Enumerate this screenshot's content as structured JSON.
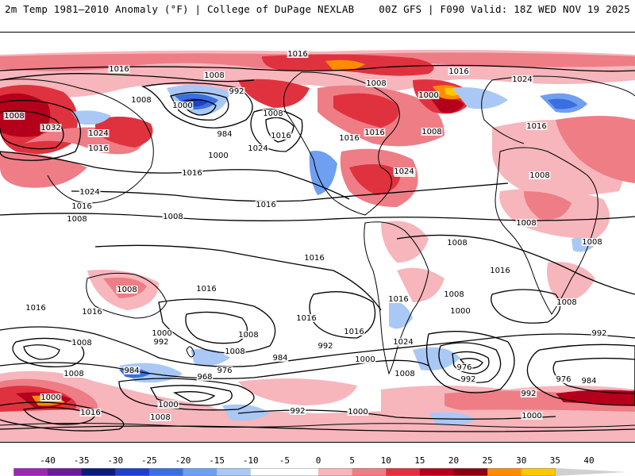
{
  "header": {
    "left_title": "2m Temp 1981–2010 Anomaly (°F) | College of DuPage NEXLAB",
    "right_title": "00Z GFS | F090 Valid: 18Z WED NOV 19 2025"
  },
  "colorbar": {
    "ticks": [
      "-40",
      "-35",
      "-30",
      "-25",
      "-20",
      "-15",
      "-10",
      "-5",
      "0",
      "5",
      "10",
      "15",
      "20",
      "25",
      "30",
      "35",
      "40"
    ],
    "colors": [
      "#e040fb",
      "#9c27b0",
      "#6a1b9a",
      "#0d1b7a",
      "#1e40c8",
      "#3a6fe0",
      "#6f9ff0",
      "#a9c8f5",
      "#ffffff",
      "#ffffff",
      "#f6b6bc",
      "#ee7d86",
      "#e0323e",
      "#b5001c",
      "#8a0010",
      "#ff8c00",
      "#ffc800",
      "#d0d0d0"
    ]
  },
  "isobars": [
    {
      "text": "1016"
    },
    {
      "text": "1016"
    },
    {
      "text": "1008"
    },
    {
      "text": "1008"
    },
    {
      "text": "992"
    },
    {
      "text": "1008"
    },
    {
      "text": "1032"
    },
    {
      "text": "1024"
    },
    {
      "text": "1016"
    },
    {
      "text": "1000"
    },
    {
      "text": "984"
    },
    {
      "text": "1008"
    },
    {
      "text": "1016"
    },
    {
      "text": "1024"
    },
    {
      "text": "1000"
    },
    {
      "text": "1016"
    },
    {
      "text": "1024"
    },
    {
      "text": "1016"
    },
    {
      "text": "1016"
    },
    {
      "text": "1016"
    },
    {
      "text": "1008"
    },
    {
      "text": "1016"
    },
    {
      "text": "1024"
    },
    {
      "text": "1008"
    },
    {
      "text": "1008"
    },
    {
      "text": "1016"
    },
    {
      "text": "1024"
    },
    {
      "text": "1000"
    },
    {
      "text": "1008"
    },
    {
      "text": "1016"
    },
    {
      "text": "1008"
    },
    {
      "text": "1008"
    },
    {
      "text": "1008"
    },
    {
      "text": "1008"
    },
    {
      "text": "1016"
    },
    {
      "text": "1016"
    },
    {
      "text": "1016"
    },
    {
      "text": "1016"
    },
    {
      "text": "1008"
    },
    {
      "text": "1016"
    },
    {
      "text": "1008"
    },
    {
      "text": "1016"
    },
    {
      "text": "1008"
    },
    {
      "text": "1008"
    },
    {
      "text": "1016"
    },
    {
      "text": "1008"
    },
    {
      "text": "1016"
    },
    {
      "text": "1024"
    },
    {
      "text": "1024"
    },
    {
      "text": "1000"
    },
    {
      "text": "992"
    },
    {
      "text": "1008"
    },
    {
      "text": "984"
    },
    {
      "text": "992"
    },
    {
      "text": "1000"
    },
    {
      "text": "1008"
    },
    {
      "text": "1000"
    },
    {
      "text": "976"
    },
    {
      "text": "992"
    },
    {
      "text": "992"
    },
    {
      "text": "976"
    },
    {
      "text": "984"
    },
    {
      "text": "1008"
    },
    {
      "text": "984"
    },
    {
      "text": "968"
    },
    {
      "text": "976"
    },
    {
      "text": "1000"
    },
    {
      "text": "1000"
    },
    {
      "text": "1016"
    },
    {
      "text": "1008"
    },
    {
      "text": "992"
    },
    {
      "text": "1000"
    },
    {
      "text": "992"
    },
    {
      "text": "1000"
    }
  ]
}
